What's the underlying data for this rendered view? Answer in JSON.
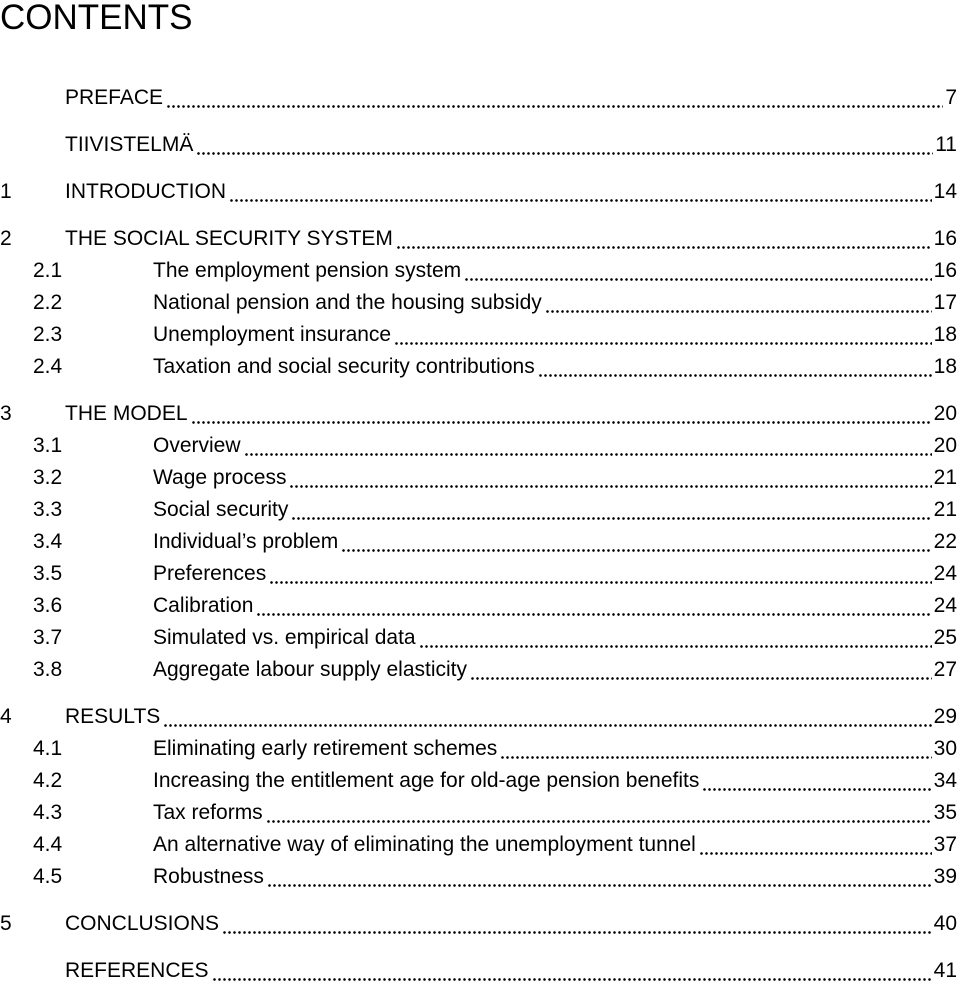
{
  "title": "CONTENTS",
  "entries": [
    {
      "title": "PREFACE",
      "page": 7
    },
    {
      "title": "TIIVISTELMÄ",
      "page": 11
    },
    {
      "number": "1",
      "title": "INTRODUCTION",
      "page": 14
    },
    {
      "number": "2",
      "title": "THE SOCIAL SECURITY SYSTEM",
      "page": 16,
      "sections": [
        {
          "number": "2.1",
          "title": "The employment pension system",
          "page": 16
        },
        {
          "number": "2.2",
          "title": "National pension and the housing subsidy",
          "page": 17
        },
        {
          "number": "2.3",
          "title": "Unemployment insurance",
          "page": 18
        },
        {
          "number": "2.4",
          "title": "Taxation and social security contributions",
          "page": 18
        }
      ]
    },
    {
      "number": "3",
      "title": "THE MODEL",
      "page": 20,
      "sections": [
        {
          "number": "3.1",
          "title": "Overview",
          "page": 20
        },
        {
          "number": "3.2",
          "title": "Wage process",
          "page": 21
        },
        {
          "number": "3.3",
          "title": "Social security",
          "page": 21
        },
        {
          "number": "3.4",
          "title": "Individual’s problem",
          "page": 22
        },
        {
          "number": "3.5",
          "title": "Preferences",
          "page": 24
        },
        {
          "number": "3.6",
          "title": "Calibration",
          "page": 24
        },
        {
          "number": "3.7",
          "title": "Simulated vs. empirical data",
          "page": 25
        },
        {
          "number": "3.8",
          "title": "Aggregate labour supply elasticity",
          "page": 27
        }
      ]
    },
    {
      "number": "4",
      "title": "RESULTS",
      "page": 29,
      "sections": [
        {
          "number": "4.1",
          "title": "Eliminating early retirement schemes",
          "page": 30
        },
        {
          "number": "4.2",
          "title": "Increasing the entitlement age for old-age pension benefits",
          "page": 34
        },
        {
          "number": "4.3",
          "title": "Tax reforms",
          "page": 35
        },
        {
          "number": "4.4",
          "title": "An alternative way of eliminating the unemployment tunnel",
          "page": 37
        },
        {
          "number": "4.5",
          "title": "Robustness",
          "page": 39
        }
      ]
    },
    {
      "number": "5",
      "title": "CONCLUSIONS",
      "page": 40
    },
    {
      "title": "REFERENCES",
      "page": 41
    }
  ]
}
